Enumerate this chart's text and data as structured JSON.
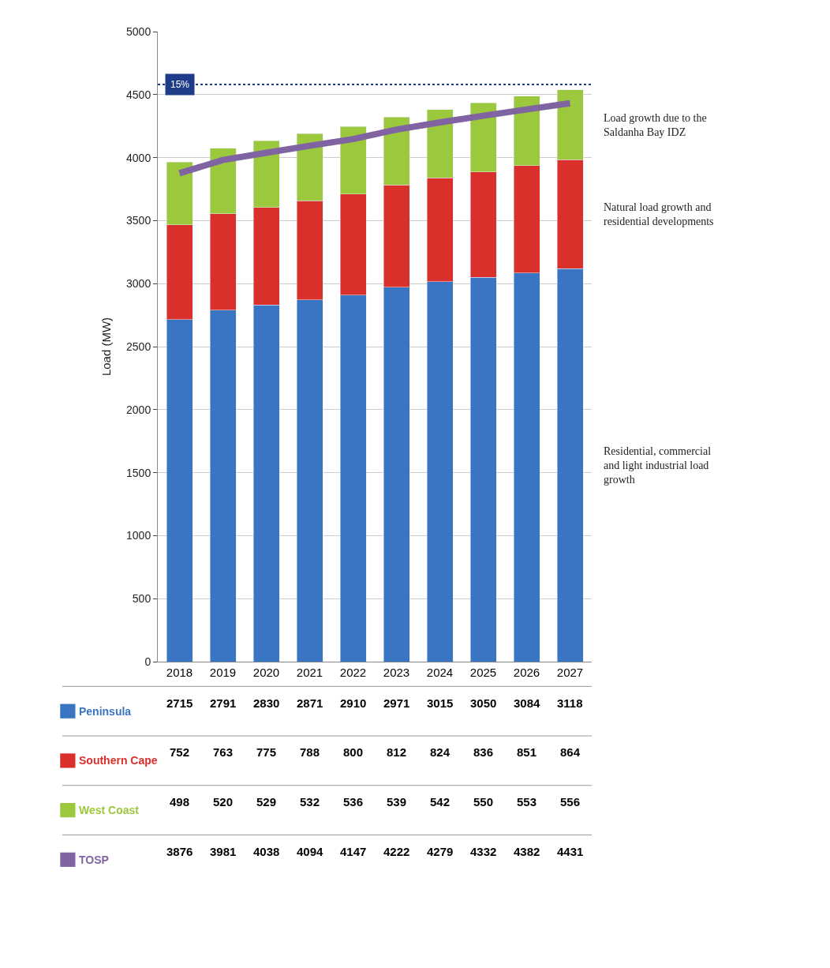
{
  "chart_data": {
    "type": "bar",
    "stacked": true,
    "ylabel": "Load (MW)",
    "categories": [
      "2018",
      "2019",
      "2020",
      "2021",
      "2022",
      "2023",
      "2024",
      "2025",
      "2026",
      "2027"
    ],
    "series": [
      {
        "name": "Peninsula",
        "color": "#3a75c4",
        "values": [
          2715,
          2791,
          2830,
          2871,
          2910,
          2971,
          3015,
          3050,
          3084,
          3118
        ]
      },
      {
        "name": "Southern Cape",
        "color": "#d9302c",
        "values": [
          752,
          763,
          775,
          788,
          800,
          812,
          824,
          836,
          851,
          864
        ]
      },
      {
        "name": "West Coast",
        "color": "#9bc83c",
        "values": [
          498,
          520,
          529,
          532,
          536,
          539,
          542,
          550,
          553,
          556
        ]
      },
      {
        "name": "TOSP",
        "type": "line",
        "color": "#8064a2",
        "values": [
          3876,
          3981,
          4038,
          4094,
          4147,
          4222,
          4279,
          4332,
          4382,
          4431
        ]
      }
    ],
    "ylim": [
      0,
      5000
    ],
    "yticks": [
      0,
      500,
      1000,
      1500,
      2000,
      2500,
      3000,
      3500,
      4000,
      4500,
      5000
    ],
    "grid": "y",
    "marker": "none",
    "data_labels": true,
    "legend": "bottom left",
    "ref_lines": [
      {
        "axis": "y",
        "value": 4580,
        "color": "#1f3c88",
        "line_style": "dotted"
      }
    ],
    "annotations": [
      "Residential, commercial and light industrial load growth",
      "Natural load growth and residential developments",
      "Load growth due to the Saldanha Bay IDZ",
      {
        "text": "15%",
        "x": "2018",
        "y": 4580
      }
    ]
  }
}
